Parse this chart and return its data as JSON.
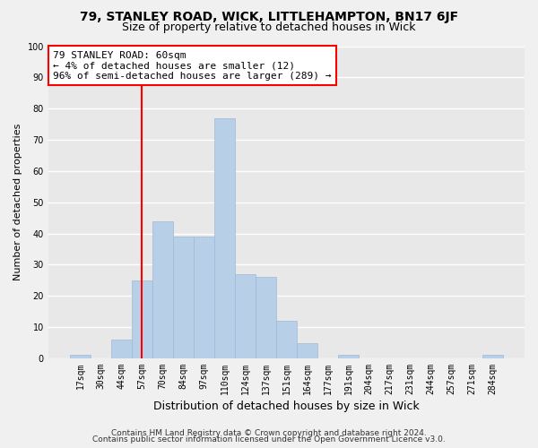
{
  "title1": "79, STANLEY ROAD, WICK, LITTLEHAMPTON, BN17 6JF",
  "title2": "Size of property relative to detached houses in Wick",
  "xlabel": "Distribution of detached houses by size in Wick",
  "ylabel": "Number of detached properties",
  "bar_labels": [
    "17sqm",
    "30sqm",
    "44sqm",
    "57sqm",
    "70sqm",
    "84sqm",
    "97sqm",
    "110sqm",
    "124sqm",
    "137sqm",
    "151sqm",
    "164sqm",
    "177sqm",
    "191sqm",
    "204sqm",
    "217sqm",
    "231sqm",
    "244sqm",
    "257sqm",
    "271sqm",
    "284sqm"
  ],
  "bar_values": [
    1,
    0,
    6,
    25,
    44,
    39,
    39,
    77,
    27,
    26,
    12,
    5,
    0,
    1,
    0,
    0,
    0,
    0,
    0,
    0,
    1
  ],
  "bar_color": "#b8cfe8",
  "bar_edge_color": "#a0b8d8",
  "vline_x_index": 3,
  "vline_color": "red",
  "ylim": [
    0,
    100
  ],
  "annotation_line1": "79 STANLEY ROAD: 60sqm",
  "annotation_line2": "← 4% of detached houses are smaller (12)",
  "annotation_line3": "96% of semi-detached houses are larger (289) →",
  "footer1": "Contains HM Land Registry data © Crown copyright and database right 2024.",
  "footer2": "Contains public sector information licensed under the Open Government Licence v3.0.",
  "background_color": "#f0f0f0",
  "plot_bg_color": "#e8e8e8",
  "grid_color": "#ffffff",
  "title1_fontsize": 10,
  "title2_fontsize": 9,
  "xlabel_fontsize": 9,
  "ylabel_fontsize": 8,
  "tick_fontsize": 7,
  "annotation_fontsize": 8,
  "footer_fontsize": 6.5
}
